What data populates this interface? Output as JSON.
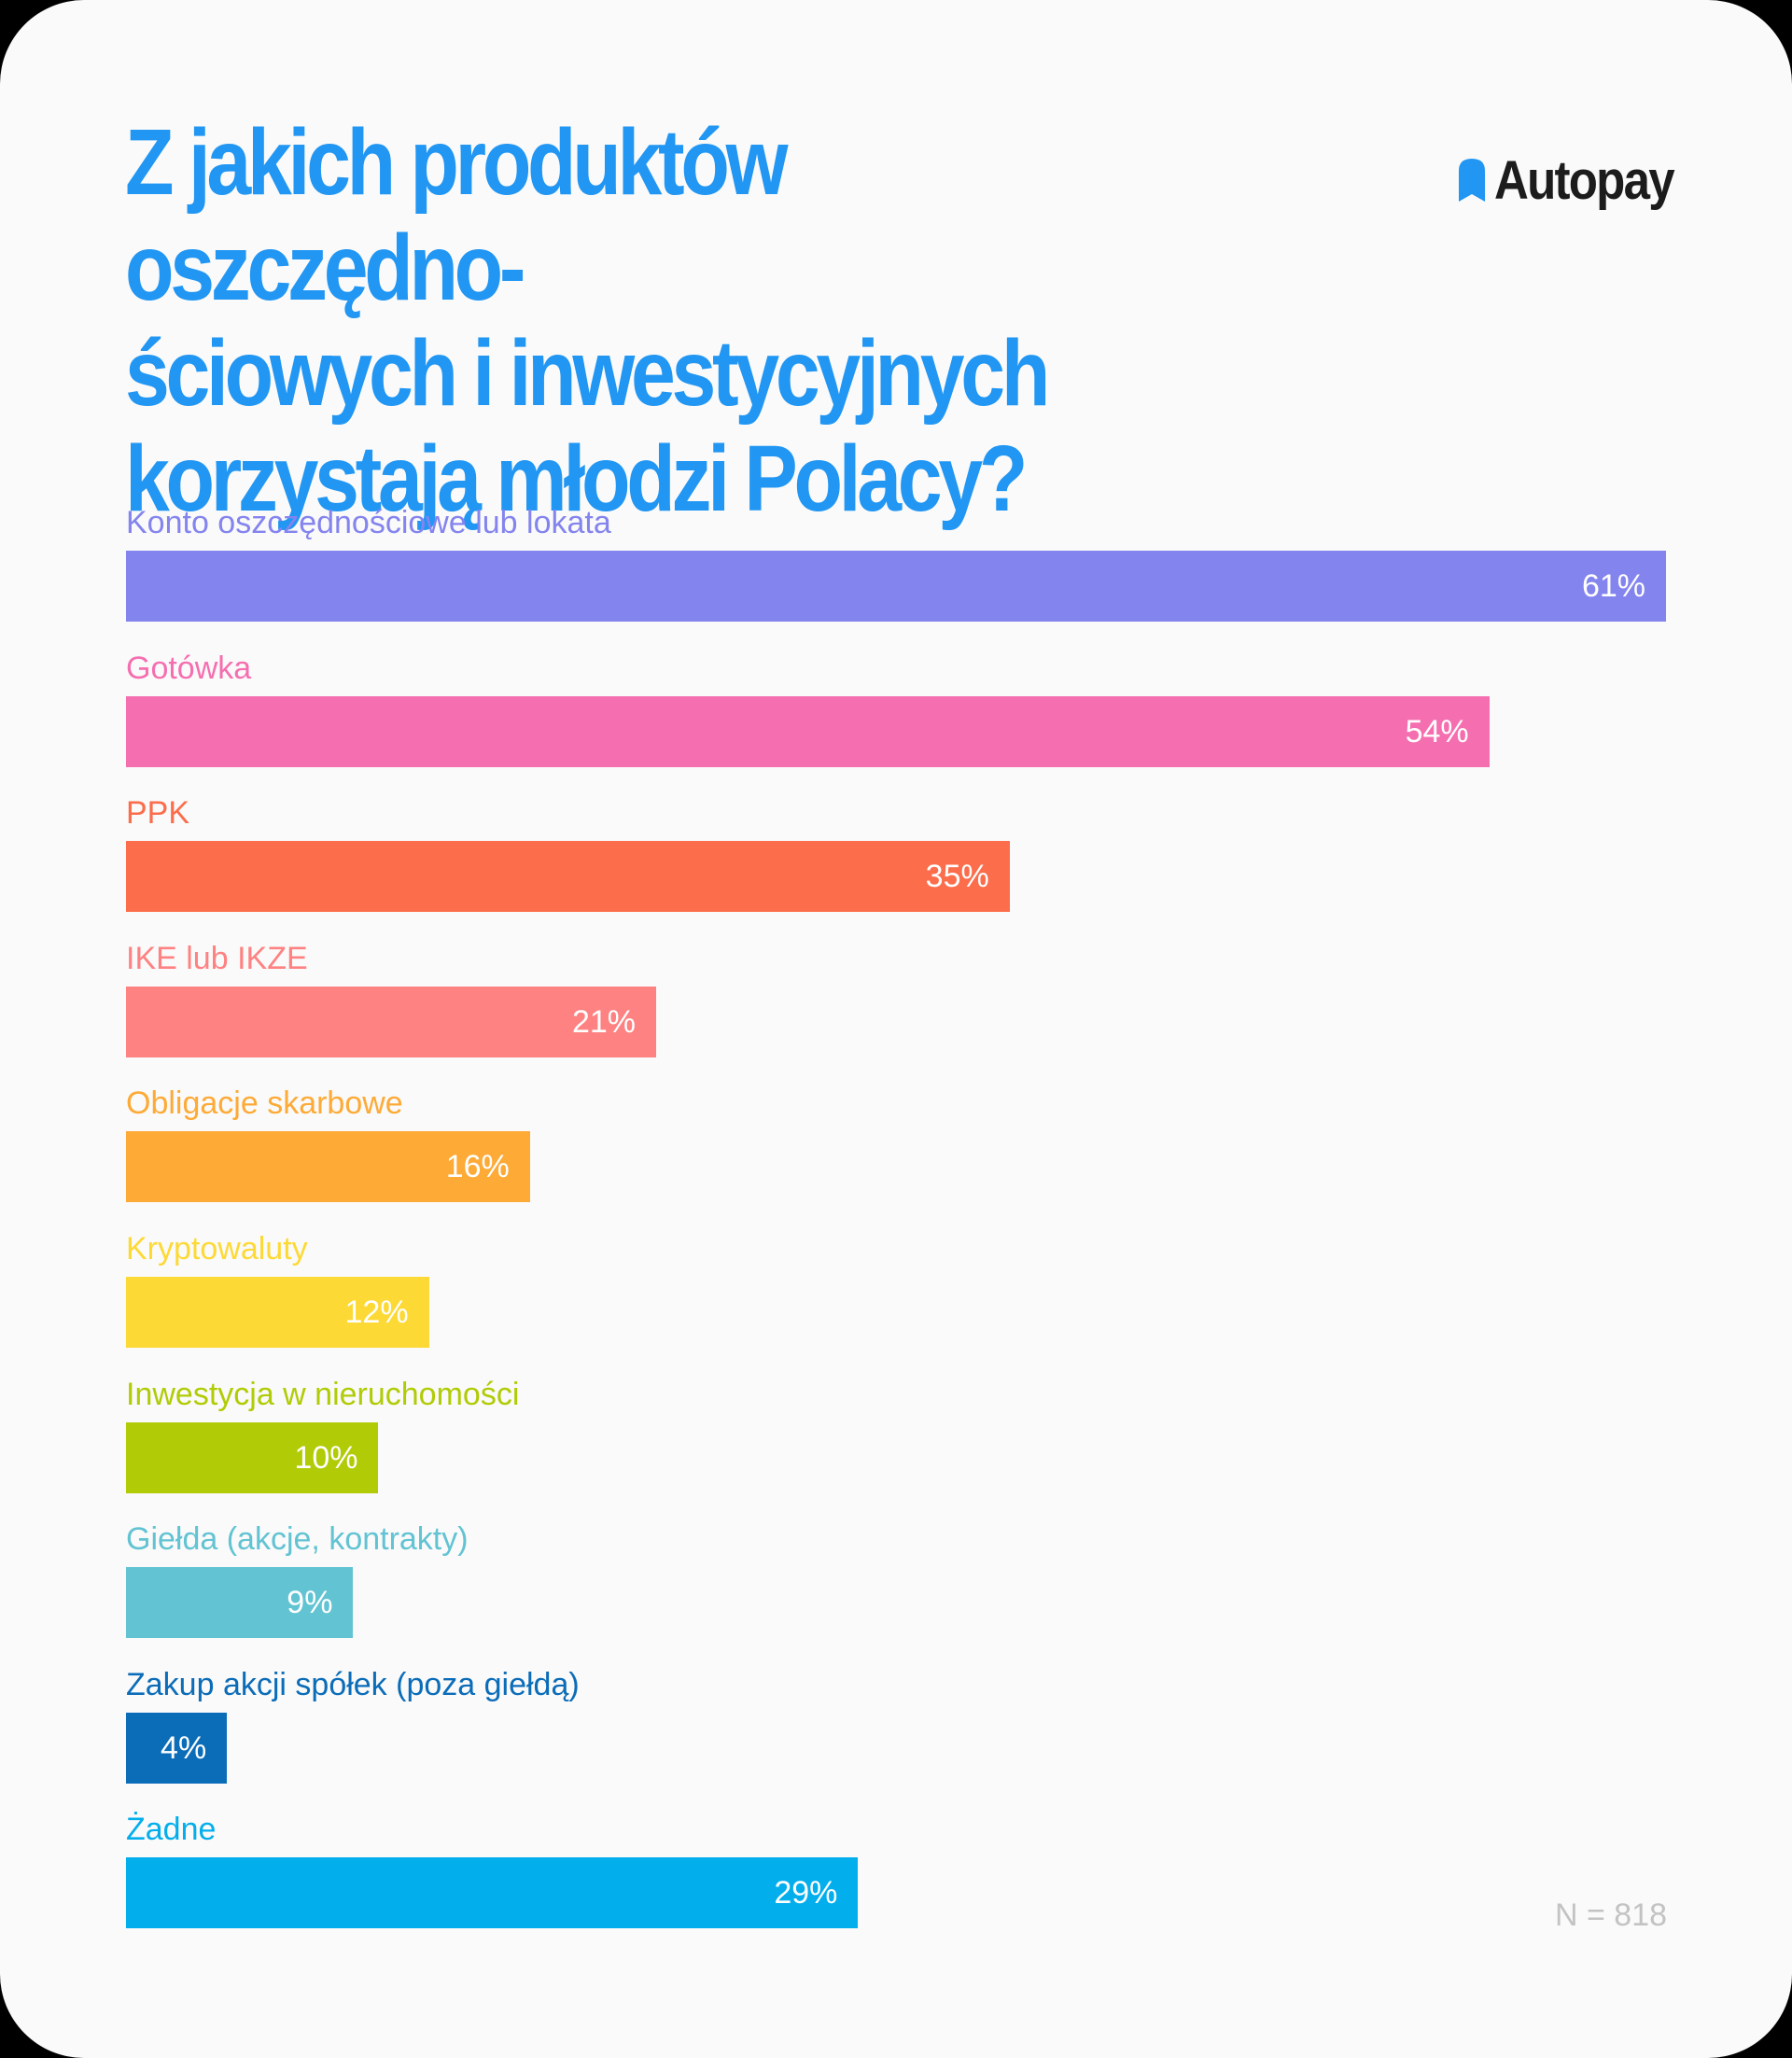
{
  "title": "Z jakich produktów oszczędno-\nściowych i inwestycyjnych\nkorzystają młodzi Polacy?",
  "logo": {
    "text": "Autopay",
    "icon": "autopay-logo-icon"
  },
  "sample_size": "N = 818",
  "colors": {
    "title": "#2196f3",
    "logo_icon": "#2196f3",
    "card_background": "#fafafa"
  },
  "chart_data": {
    "type": "bar",
    "orientation": "horizontal",
    "title": "Z jakich produktów oszczędno-ściowych i inwestycyjnych korzystają młodzi Polacy?",
    "xlim": [
      0,
      61
    ],
    "grid": false,
    "legend": "none",
    "categories": [
      "Konto oszczędnościowe lub lokata",
      "Gotówka",
      "PPK",
      "IKE lub IKZE",
      "Obligacje skarbowe",
      "Kryptowaluty",
      "Inwestycja w nieruchomości",
      "Giełda (akcje, kontrakty)",
      "Zakup akcji spółek (poza giełdą)",
      "Żadne"
    ],
    "values": [
      61,
      54,
      35,
      21,
      16,
      12,
      10,
      9,
      4,
      29
    ],
    "value_labels": [
      "61%",
      "54%",
      "35%",
      "21%",
      "16%",
      "12%",
      "10%",
      "9%",
      "4%",
      "29%"
    ],
    "colors": [
      "#8484ef",
      "#f56fb0",
      "#fc6d4b",
      "#fe8282",
      "#fdaa37",
      "#fdd935",
      "#b1cb06",
      "#62c3d3",
      "#0b6cb8",
      "#03aeed"
    ]
  }
}
